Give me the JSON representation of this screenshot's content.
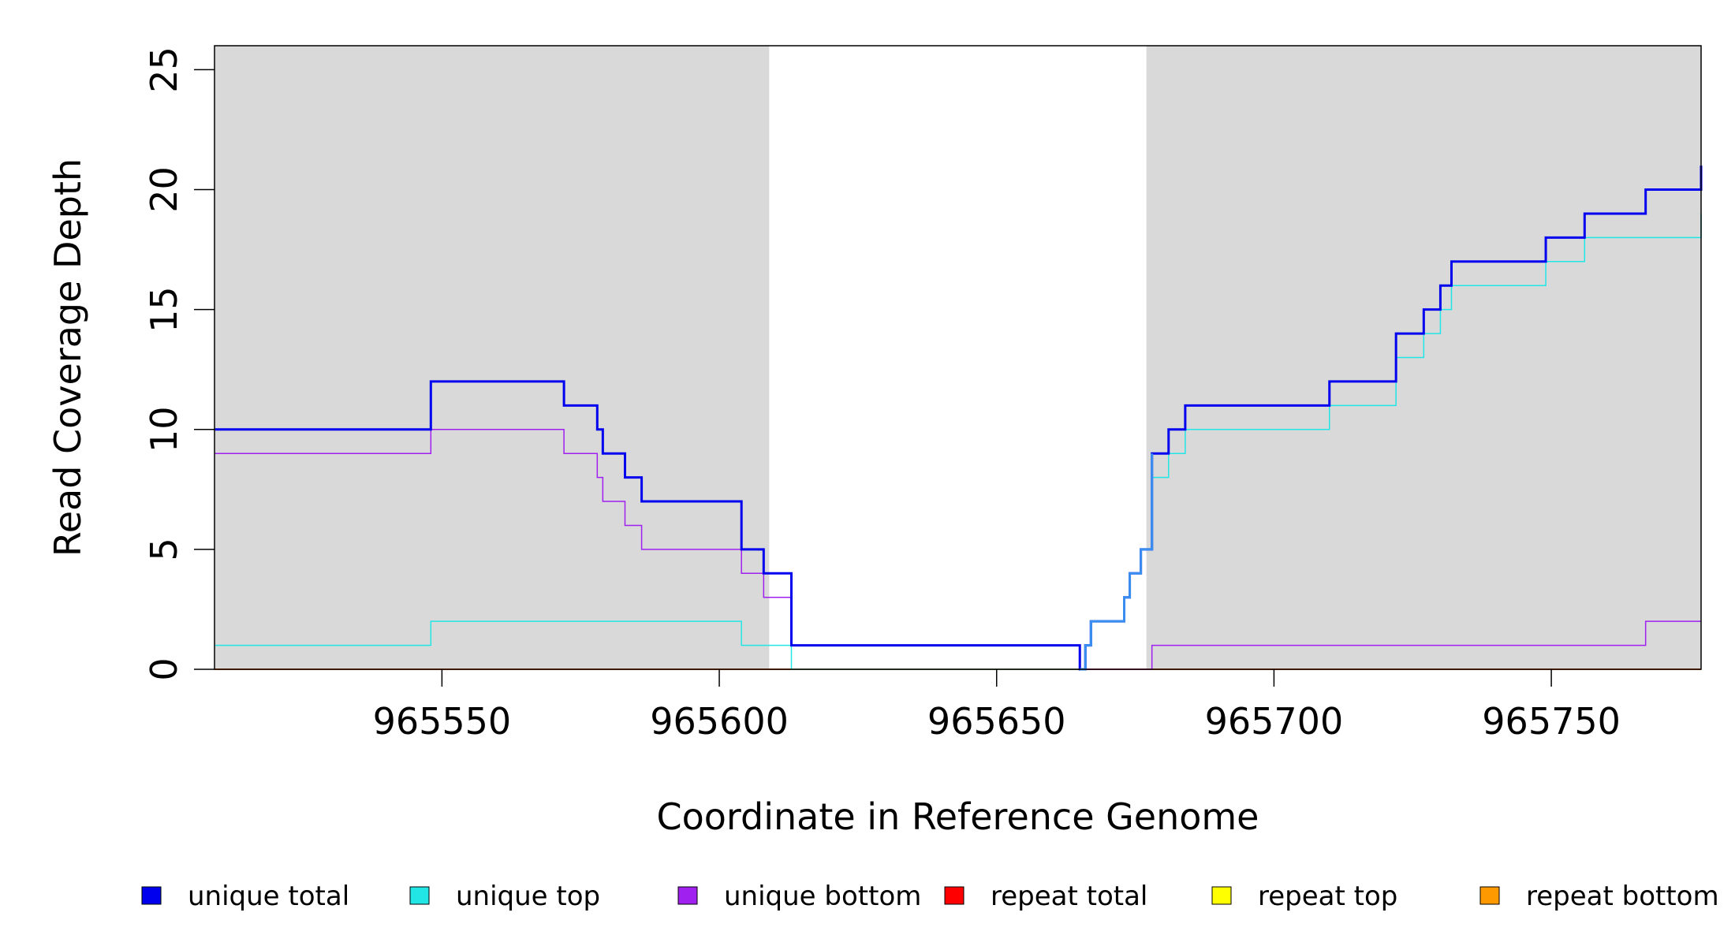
{
  "chart_data": {
    "type": "line",
    "title": "",
    "xlabel": "Coordinate in Reference Genome",
    "ylabel": "Read Coverage Depth",
    "xlim": [
      965509,
      965777
    ],
    "ylim": [
      0,
      26
    ],
    "xticks": [
      {
        "value": 965550,
        "label": "965550"
      },
      {
        "value": 965600,
        "label": "965600"
      },
      {
        "value": 965650,
        "label": "965650"
      },
      {
        "value": 965700,
        "label": "965700"
      },
      {
        "value": 965750,
        "label": "965750"
      }
    ],
    "yticks": [
      {
        "value": 0,
        "label": "0"
      },
      {
        "value": 5,
        "label": "5"
      },
      {
        "value": 10,
        "label": "10"
      },
      {
        "value": 15,
        "label": "15"
      },
      {
        "value": 20,
        "label": "20"
      },
      {
        "value": 25,
        "label": "25"
      }
    ],
    "shaded_regions": [
      {
        "from": 965509,
        "to": 965609,
        "color": "#d9d9d9"
      },
      {
        "from": 965677,
        "to": 965777,
        "color": "#d9d9d9"
      }
    ],
    "grid": false,
    "legend_position": "bottom",
    "series": [
      {
        "name": "unique total",
        "color": "#0000ee",
        "line_width": 3,
        "x": [
          965509,
          965548,
          965572,
          965578,
          965579,
          965583,
          965586,
          965604,
          965608,
          965613,
          965665,
          965666,
          965667,
          965673,
          965674,
          965676,
          965678,
          965681,
          965684,
          965710,
          965722,
          965727,
          965730,
          965732,
          965749,
          965756,
          965767,
          965777
        ],
        "y": [
          10,
          12,
          11,
          10,
          9,
          8,
          7,
          5,
          4,
          1,
          0,
          1,
          2,
          3,
          4,
          5,
          9,
          10,
          11,
          12,
          14,
          15,
          16,
          17,
          18,
          19,
          20,
          21
        ]
      },
      {
        "name": "unique top",
        "color": "#22e6e6",
        "line_width": 1.5,
        "x": [
          965509,
          965548,
          965604,
          965613,
          965666,
          965667,
          965673,
          965674,
          965676,
          965678,
          965681,
          965684,
          965710,
          965722,
          965727,
          965730,
          965732,
          965749,
          965756,
          965777
        ],
        "y": [
          1,
          2,
          1,
          0,
          1,
          2,
          3,
          4,
          5,
          8,
          9,
          10,
          11,
          13,
          14,
          15,
          16,
          17,
          18,
          19
        ]
      },
      {
        "name": "unique bottom",
        "color": "#a020f0",
        "line_width": 1.5,
        "x": [
          965509,
          965548,
          965572,
          965578,
          965579,
          965583,
          965586,
          965604,
          965608,
          965613,
          965665,
          965678,
          965767
        ],
        "y": [
          9,
          10,
          9,
          8,
          7,
          6,
          5,
          4,
          3,
          1,
          0,
          1,
          2
        ]
      },
      {
        "name": "repeat total",
        "color": "#ff0000",
        "line_width": 1.5,
        "x": [
          965509,
          965777
        ],
        "y": [
          0,
          0
        ]
      },
      {
        "name": "repeat top",
        "color": "#ffff00",
        "line_width": 1.5,
        "x": [
          965509,
          965777
        ],
        "y": [
          0,
          0
        ]
      },
      {
        "name": "repeat bottom",
        "color": "#ff9900",
        "line_width": 2,
        "x": [
          965509,
          965777
        ],
        "y": [
          0,
          0
        ]
      }
    ],
    "overlap_color": "#3a8ef0",
    "overlap_range": [
      965665,
      965678
    ]
  }
}
